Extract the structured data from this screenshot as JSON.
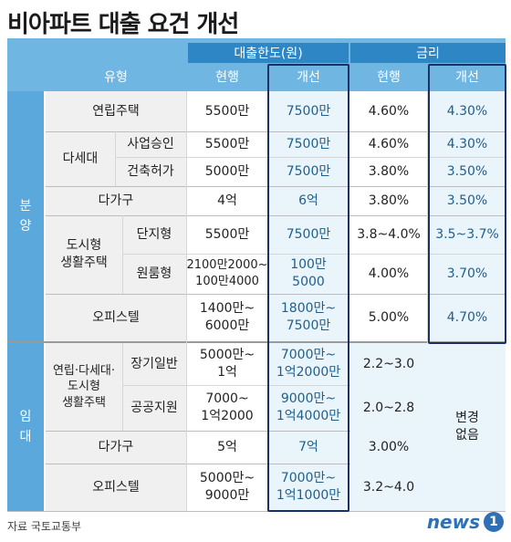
{
  "title": "비아파트 대출 요건 개선",
  "header": {
    "loan_limit": "대출한도(원)",
    "interest": "금리",
    "type": "유형",
    "current1": "현행",
    "improve1": "개선",
    "current2": "현행",
    "improve2": "개선"
  },
  "sections": {
    "sale": "분\n양",
    "rent": "임\n대"
  },
  "rows": {
    "r1": {
      "label": "연립주택",
      "c1": "5500만",
      "c2": "7500만",
      "c3": "4.60%",
      "c4": "4.30%"
    },
    "dasede": "다세대",
    "r2": {
      "label": "사업승인",
      "c1": "5500만",
      "c2": "7500만",
      "c3": "4.60%",
      "c4": "4.30%"
    },
    "r3": {
      "label": "건축허가",
      "c1": "5000만",
      "c2": "7500만",
      "c3": "3.80%",
      "c4": "3.50%"
    },
    "r4": {
      "label": "다가구",
      "c1": "4억",
      "c2": "6억",
      "c3": "3.80%",
      "c4": "3.50%"
    },
    "dosi": "도시형\n생활주택",
    "r5": {
      "label": "단지형",
      "c1": "5500만",
      "c2": "7500만",
      "c3": "3.8~4.0%",
      "c4": "3.5~3.7%"
    },
    "r6": {
      "label": "원룸형",
      "c1": "2100만2000~\n100만4000",
      "c2": "100만\n5000",
      "c3": "4.00%",
      "c4": "3.70%"
    },
    "r7": {
      "label": "오피스텔",
      "c1": "1400만~\n6000만",
      "c2": "1800만~\n7500만",
      "c3": "5.00%",
      "c4": "4.70%"
    },
    "rent_group": "연립·다세대·\n도시형\n생활주택",
    "r8": {
      "label": "장기일반",
      "c1": "5000만~\n1억",
      "c2": "7000만~\n1억2000만",
      "c3": "2.2~3.0"
    },
    "r9": {
      "label": "공공지원",
      "c1": "7000~\n1억2000",
      "c2": "9000만~\n1억4000만",
      "c3": "2.0~2.8"
    },
    "r10": {
      "label": "다가구",
      "c1": "5억",
      "c2": "7억",
      "c3": "3.00%"
    },
    "r11": {
      "label": "오피스텔",
      "c1": "5000만~\n9000만",
      "c2": "7000만~\n1억1000만",
      "c3": "3.2~4.0"
    },
    "no_change": "변경\n없음"
  },
  "source": "자료  국토교통부",
  "logo": {
    "text": "news",
    "mark": "1"
  },
  "colors": {
    "header": "#6fb6e3",
    "pill": "#2f86c4",
    "side": "#5aa8dc",
    "highlight": "#1c2f66",
    "blue_cell": "#eaf4fb"
  }
}
